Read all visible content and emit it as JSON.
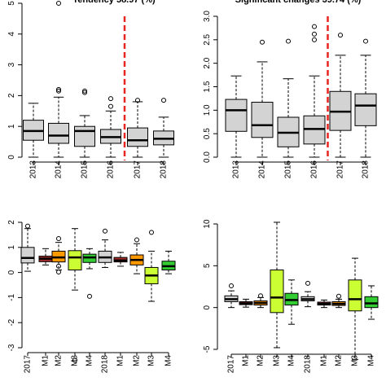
{
  "chart_data": [
    {
      "type": "box",
      "title": "Tendency 58.97 (%)",
      "categories": [
        "2013",
        "2014",
        "2015",
        "2016",
        "2017",
        "2018"
      ],
      "ylim": [
        0,
        5
      ],
      "yticks": [
        "0",
        "1",
        "2",
        "3",
        "4",
        "5"
      ],
      "series": [
        {
          "colors": [
            "#d3d3d3",
            "#d3d3d3",
            "#d3d3d3",
            "#d3d3d3",
            "#d3d3d3",
            "#d3d3d3"
          ],
          "boxes": [
            {
              "whislo": 0.0,
              "q1": 0.55,
              "med": 0.85,
              "q3": 1.2,
              "whishi": 1.75,
              "fliers": []
            },
            {
              "whislo": 0.0,
              "q1": 0.45,
              "med": 0.7,
              "q3": 1.1,
              "whishi": 1.95,
              "fliers": [
                2.15,
                2.2,
                5.0
              ]
            },
            {
              "whislo": 0.0,
              "q1": 0.35,
              "med": 0.85,
              "q3": 1.0,
              "whishi": 1.35,
              "fliers": [
                2.1,
                2.15
              ]
            },
            {
              "whislo": 0.0,
              "q1": 0.45,
              "med": 0.65,
              "q3": 0.9,
              "whishi": 1.5,
              "fliers": [
                1.65,
                1.9
              ]
            },
            {
              "whislo": 0.0,
              "q1": 0.35,
              "med": 0.55,
              "q3": 0.95,
              "whishi": 1.8,
              "fliers": [
                1.85
              ]
            },
            {
              "whislo": 0.0,
              "q1": 0.4,
              "med": 0.6,
              "q3": 0.85,
              "whishi": 1.3,
              "fliers": [
                1.85
              ]
            }
          ]
        }
      ],
      "vline": {
        "after_index": 3,
        "color": "#e8251f"
      },
      "xlabel": "",
      "ylabel": "",
      "grid": false
    },
    {
      "type": "box",
      "title": "Significant changes 39.74 (%)",
      "categories": [
        "2013",
        "2014",
        "2015",
        "2016",
        "2017",
        "2018"
      ],
      "ylim": [
        0,
        3.0
      ],
      "yticks": [
        "0.0",
        "0.5",
        "1.0",
        "1.5",
        "2.0",
        "2.5",
        "3.0"
      ],
      "series": [
        {
          "colors": [
            "#d3d3d3",
            "#d3d3d3",
            "#d3d3d3",
            "#d3d3d3",
            "#d3d3d3",
            "#d3d3d3"
          ],
          "boxes": [
            {
              "whislo": 0.0,
              "q1": 0.55,
              "med": 1.0,
              "q3": 1.23,
              "whishi": 1.73,
              "fliers": []
            },
            {
              "whislo": 0.0,
              "q1": 0.42,
              "med": 0.68,
              "q3": 1.17,
              "whishi": 2.03,
              "fliers": [
                2.45
              ]
            },
            {
              "whislo": 0.0,
              "q1": 0.22,
              "med": 0.52,
              "q3": 0.85,
              "whishi": 1.67,
              "fliers": [
                2.47
              ]
            },
            {
              "whislo": 0.0,
              "q1": 0.28,
              "med": 0.6,
              "q3": 0.88,
              "whishi": 1.73,
              "fliers": [
                2.5,
                2.62,
                2.78
              ]
            },
            {
              "whislo": 0.0,
              "q1": 0.57,
              "med": 0.97,
              "q3": 1.4,
              "whishi": 2.17,
              "fliers": [
                2.6
              ]
            },
            {
              "whislo": 0.0,
              "q1": 0.67,
              "med": 1.1,
              "q3": 1.35,
              "whishi": 2.17,
              "fliers": [
                2.47
              ]
            }
          ]
        }
      ],
      "vline": {
        "after_index": 3,
        "color": "#e8251f"
      },
      "xlabel": "",
      "ylabel": "",
      "grid": false
    },
    {
      "type": "box",
      "title": "",
      "categories": [
        "2017",
        "M1",
        "M2",
        "M3",
        "M4",
        "2018",
        "M1",
        "M2",
        "M3",
        "M4"
      ],
      "ylim": [
        -3,
        2
      ],
      "yticks": [
        "-3",
        "-2",
        "-1",
        "0",
        "1",
        "2"
      ],
      "series": [
        {
          "colors": [
            "#d3d3d3",
            "#a52a2a",
            "#ff9900",
            "#ccff33",
            "#33cc33",
            "#d3d3d3",
            "#a52a2a",
            "#ff9900",
            "#ccff33",
            "#33cc33"
          ],
          "boxes": [
            {
              "whislo": 0.05,
              "q1": 0.38,
              "med": 0.58,
              "q3": 1.0,
              "whishi": 1.75,
              "fliers": [
                1.85
              ]
            },
            {
              "whislo": 0.3,
              "q1": 0.43,
              "med": 0.55,
              "q3": 0.65,
              "whishi": 0.95,
              "fliers": []
            },
            {
              "whislo": 0.1,
              "q1": 0.42,
              "med": 0.6,
              "q3": 0.85,
              "whishi": 1.2,
              "fliers": [
                0.02,
                0.25,
                1.35
              ]
            },
            {
              "whislo": -0.7,
              "q1": 0.1,
              "med": 0.6,
              "q3": 0.87,
              "whishi": 1.75,
              "fliers": [
                -3.5
              ]
            },
            {
              "whislo": 0.15,
              "q1": 0.4,
              "med": 0.6,
              "q3": 0.73,
              "whishi": 0.95,
              "fliers": [
                -0.95
              ]
            },
            {
              "whislo": 0.2,
              "q1": 0.4,
              "med": 0.6,
              "q3": 0.85,
              "whishi": 1.3,
              "fliers": [
                1.65
              ]
            },
            {
              "whislo": 0.25,
              "q1": 0.42,
              "med": 0.48,
              "q3": 0.6,
              "whishi": 0.8,
              "fliers": []
            },
            {
              "whislo": -0.05,
              "q1": 0.3,
              "med": 0.5,
              "q3": 0.7,
              "whishi": 1.15,
              "fliers": [
                1.3
              ]
            },
            {
              "whislo": -1.15,
              "q1": -0.45,
              "med": -0.12,
              "q3": 0.2,
              "whishi": 0.85,
              "fliers": [
                1.6
              ]
            },
            {
              "whislo": -0.05,
              "q1": 0.1,
              "med": 0.25,
              "q3": 0.45,
              "whishi": 0.85,
              "fliers": []
            }
          ]
        }
      ],
      "xlabel": "",
      "ylabel": "",
      "grid": false
    },
    {
      "type": "box",
      "title": "",
      "categories": [
        "2017",
        "M1",
        "M2",
        "M3",
        "M4",
        "2018",
        "M1",
        "M2",
        "M3",
        "M4"
      ],
      "ylim": [
        -5,
        10
      ],
      "yticks": [
        "-5",
        "0",
        "5",
        "10"
      ],
      "series": [
        {
          "colors": [
            "#d3d3d3",
            "#a52a2a",
            "#ff9900",
            "#ccff33",
            "#33cc33",
            "#d3d3d3",
            "#a52a2a",
            "#ff9900",
            "#ccff33",
            "#33cc33"
          ],
          "boxes": [
            {
              "whislo": 0.0,
              "q1": 0.7,
              "med": 1.0,
              "q3": 1.4,
              "whishi": 2.0,
              "fliers": [
                2.6
              ]
            },
            {
              "whislo": 0.05,
              "q1": 0.35,
              "med": 0.5,
              "q3": 0.7,
              "whishi": 1.0,
              "fliers": []
            },
            {
              "whislo": 0.0,
              "q1": 0.3,
              "med": 0.55,
              "q3": 0.8,
              "whishi": 1.2,
              "fliers": [
                1.4
              ]
            },
            {
              "whislo": -4.8,
              "q1": -0.6,
              "med": 1.2,
              "q3": 4.5,
              "whishi": 10.2,
              "fliers": []
            },
            {
              "whislo": -2.0,
              "q1": 0.3,
              "med": 0.9,
              "q3": 1.7,
              "whishi": 3.3,
              "fliers": []
            },
            {
              "whislo": 0.1,
              "q1": 0.8,
              "med": 1.0,
              "q3": 1.3,
              "whishi": 1.9,
              "fliers": [
                2.9
              ]
            },
            {
              "whislo": 0.0,
              "q1": 0.3,
              "med": 0.45,
              "q3": 0.65,
              "whishi": 0.9,
              "fliers": []
            },
            {
              "whislo": 0.0,
              "q1": 0.25,
              "med": 0.45,
              "q3": 0.7,
              "whishi": 1.0,
              "fliers": [
                1.35
              ]
            },
            {
              "whislo": -6.2,
              "q1": -0.4,
              "med": 1.0,
              "q3": 3.3,
              "whishi": 5.9,
              "fliers": []
            },
            {
              "whislo": -1.4,
              "q1": 0.0,
              "med": 0.5,
              "q3": 1.3,
              "whishi": 2.6,
              "fliers": []
            }
          ]
        }
      ],
      "xlabel": "",
      "ylabel": "",
      "grid": false
    }
  ]
}
